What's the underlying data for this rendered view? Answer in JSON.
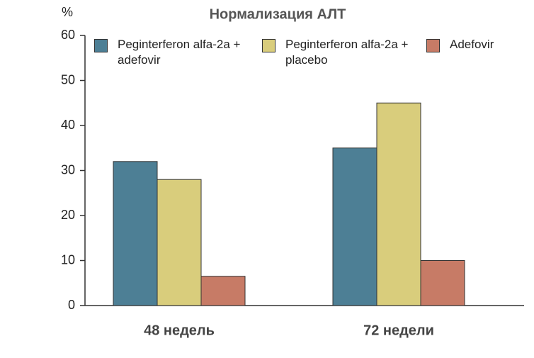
{
  "chart_data": {
    "type": "bar",
    "title": "Нормализация АЛТ",
    "y_label": "%",
    "categories": [
      "48 недель",
      "72 недели"
    ],
    "series": [
      {
        "name": "Peginterferon alfa-2a + adefovir",
        "color": "#4d7f95",
        "values": [
          32,
          35
        ]
      },
      {
        "name": "Peginterferon alfa-2a + placebo",
        "color": "#d9cd7c",
        "values": [
          28,
          45
        ]
      },
      {
        "name": "Adefovir",
        "color": "#c77b66",
        "values": [
          6.5,
          10
        ]
      }
    ],
    "ylim": [
      0,
      60
    ],
    "yticks": [
      0,
      10,
      20,
      30,
      40,
      50,
      60
    ],
    "grid": false
  }
}
